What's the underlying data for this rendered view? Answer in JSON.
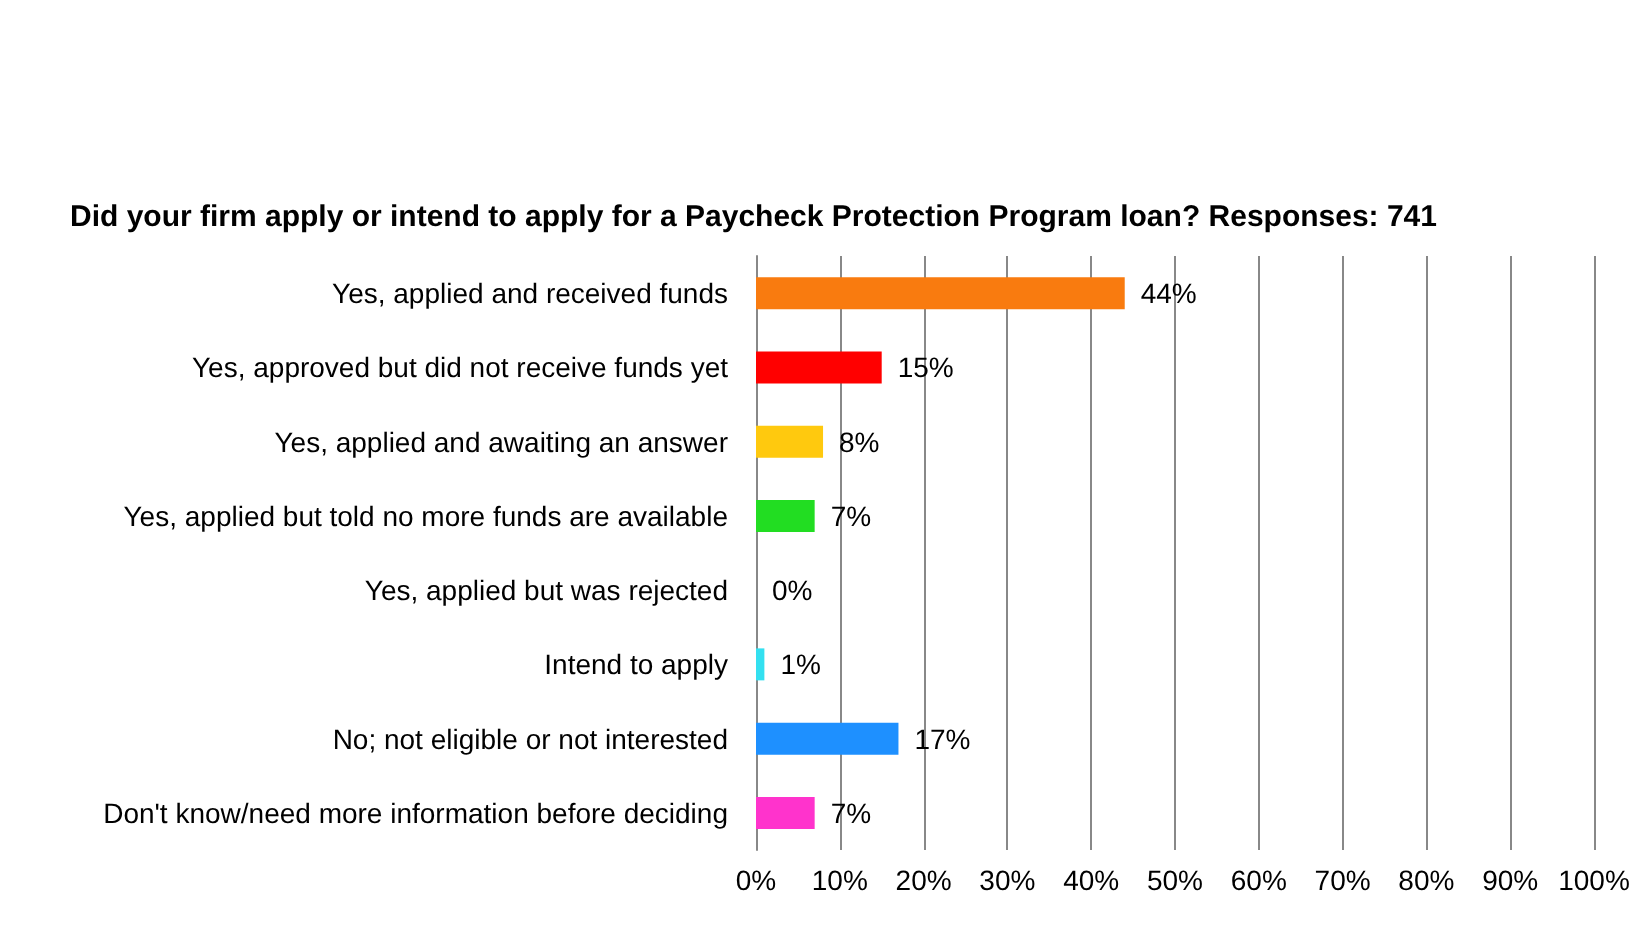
{
  "chart_data": {
    "type": "bar",
    "orientation": "horizontal",
    "title": "Did your firm apply or intend to apply for a Paycheck Protection Program loan? Responses: 741",
    "categories": [
      "Yes, applied and received funds",
      "Yes, approved but did not receive funds yet",
      "Yes, applied and awaiting an answer",
      "Yes, applied but told no more funds are available",
      "Yes, applied but was rejected",
      "Intend to apply",
      "No; not eligible or not interested",
      "Don't know/need more information before deciding"
    ],
    "values": [
      44,
      15,
      8,
      7,
      0,
      1,
      17,
      7
    ],
    "colors": [
      "#f97b0f",
      "#ff0000",
      "#ffc90e",
      "#22dd22",
      "#ffffff",
      "#33e0f0",
      "#1e90ff",
      "#ff33cc"
    ],
    "value_labels": [
      "44%",
      "15%",
      "8%",
      "7%",
      "0%",
      "1%",
      "17%",
      "7%"
    ],
    "xlim": [
      0,
      100
    ],
    "xticks": [
      {
        "value": 0,
        "label": "0%"
      },
      {
        "value": 10,
        "label": "10%"
      },
      {
        "value": 20,
        "label": "20%"
      },
      {
        "value": 30,
        "label": "30%"
      },
      {
        "value": 40,
        "label": "40%"
      },
      {
        "value": 50,
        "label": "50%"
      },
      {
        "value": 60,
        "label": "60%"
      },
      {
        "value": 70,
        "label": "70%"
      },
      {
        "value": 80,
        "label": "80%"
      },
      {
        "value": 90,
        "label": "90%"
      },
      {
        "value": 100,
        "label": "100%"
      }
    ],
    "grid": "x"
  }
}
